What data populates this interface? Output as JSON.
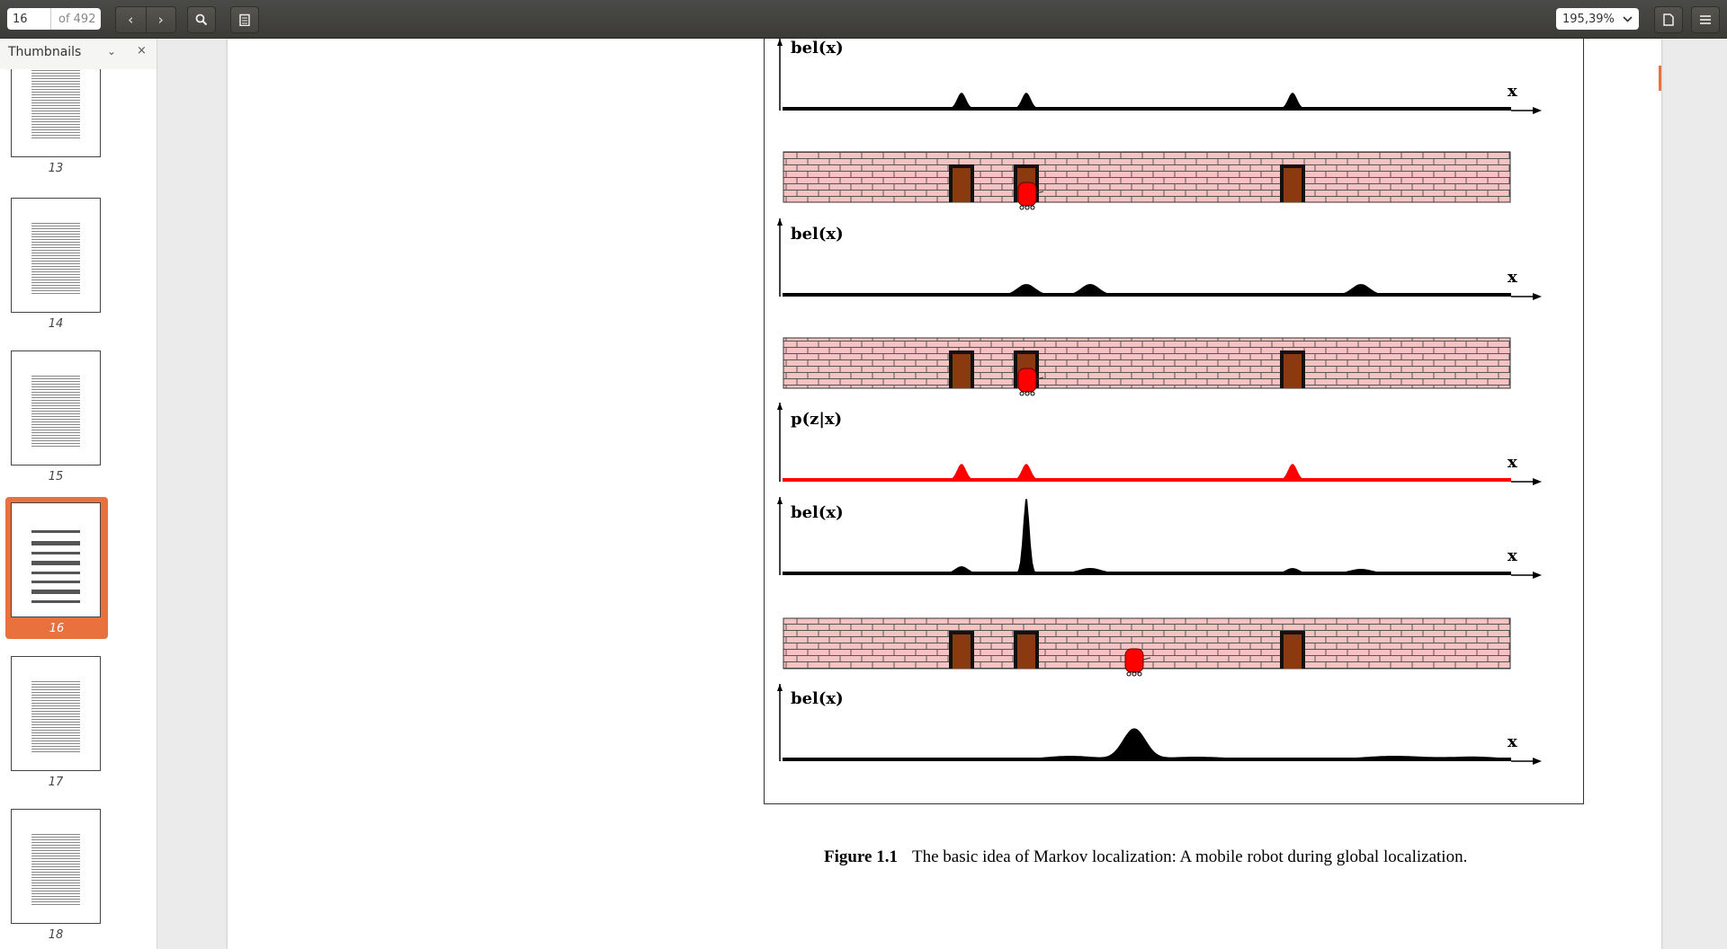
{
  "toolbar": {
    "page_current": "16",
    "page_total": "of 492",
    "prev_icon": "chevron-left-icon",
    "next_icon": "chevron-right-icon",
    "search_icon": "search-icon",
    "annotate_icon": "clipboard-icon",
    "zoom_value": "195,39%",
    "properties_icon": "document-icon",
    "menu_icon": "hamburger-menu-icon"
  },
  "sidebar": {
    "title": "Thumbnails",
    "close": "×",
    "thumbnails": [
      {
        "num": "13"
      },
      {
        "num": "14"
      },
      {
        "num": "15"
      },
      {
        "num": "16",
        "selected": true
      },
      {
        "num": "17"
      },
      {
        "num": "18"
      }
    ]
  },
  "figure": {
    "labels": {
      "bel1": "bel(x)",
      "bel2": "bel(x)",
      "pz": "p(z|x)",
      "bel3": "bel(x)",
      "bel4": "bel(x)",
      "x": "x"
    },
    "caption_label": "Figure 1.1",
    "caption_text": "The basic idea of Markov localization: A mobile robot during global localization.",
    "colors": {
      "wall": "#f6c2c2",
      "door": "#8b3a0f",
      "robot": "#ff0000",
      "likelihood": "#ff0000"
    }
  }
}
